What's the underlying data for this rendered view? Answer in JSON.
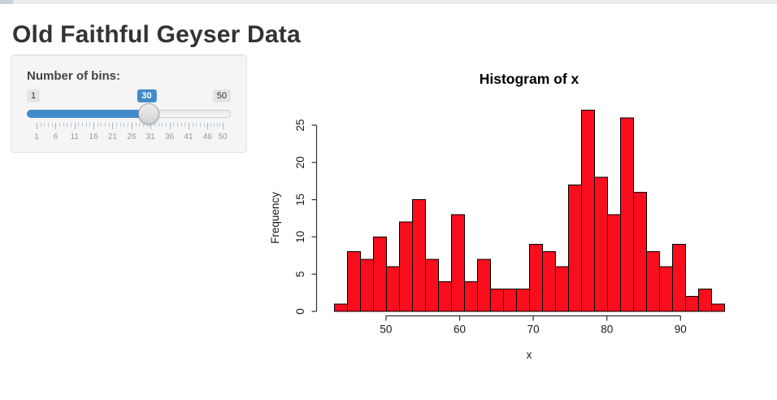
{
  "header": {
    "title": "Old Faithful Geyser Data"
  },
  "controls": {
    "bins_label": "Number of bins:",
    "slider": {
      "min": 1,
      "max": 50,
      "value": 30,
      "min_label": "1",
      "max_label": "50",
      "value_label": "30",
      "grid_labels": [
        "1",
        "6",
        "11",
        "16",
        "21",
        "26",
        "31",
        "36",
        "41",
        "46",
        "50"
      ],
      "accent_color": "#428bca"
    }
  },
  "chart_data": {
    "type": "bar",
    "subtype": "histogram",
    "title": "Histogram of x",
    "xlabel": "x",
    "ylabel": "Frequency",
    "xlim": [
      43,
      96
    ],
    "ylim": [
      0,
      27
    ],
    "bin_count": 30,
    "bin_width": 1.7667,
    "counts": [
      1,
      8,
      7,
      10,
      6,
      12,
      15,
      7,
      4,
      13,
      4,
      7,
      3,
      3,
      3,
      9,
      8,
      6,
      17,
      27,
      18,
      13,
      26,
      16,
      8,
      6,
      9,
      2,
      3,
      1
    ],
    "x_ticks": [
      50,
      60,
      70,
      80,
      90
    ],
    "y_ticks": [
      0,
      5,
      10,
      15,
      20,
      25
    ],
    "bar_fill": "#fa0d1d",
    "bar_stroke": "#000000",
    "axis_color": "#333333",
    "grid": false,
    "legend_position": "none"
  }
}
